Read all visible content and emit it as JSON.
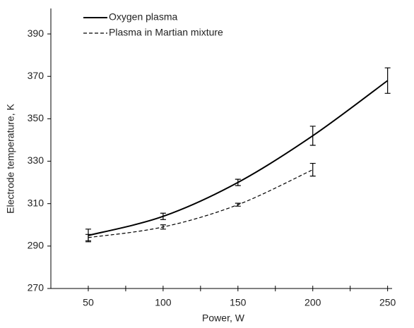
{
  "chart_data": {
    "type": "line",
    "x_label": "Power, W",
    "y_label": "Electrode temperature, K",
    "x": [
      50,
      100,
      150,
      200,
      250
    ],
    "series": [
      {
        "name": "Oxygen plasma",
        "color": "#000000",
        "dash": "solid",
        "values": [
          295,
          304,
          320,
          342,
          368
        ],
        "errors": [
          3,
          1.5,
          1.5,
          4.5,
          6
        ]
      },
      {
        "name": "Plasma in Martian mixture",
        "color": "#000000",
        "dash": "dashed",
        "values": [
          294,
          299,
          309.5,
          326,
          null
        ],
        "errors": [
          1.5,
          1,
          0.7,
          3,
          null
        ]
      }
    ],
    "xlim": [
      25,
      253
    ],
    "ylim": [
      270,
      402
    ],
    "xticks": [
      50,
      100,
      150,
      200,
      250
    ],
    "xminorticks": [
      75,
      125,
      175,
      225
    ],
    "yticks": [
      270,
      290,
      310,
      330,
      350,
      370,
      390
    ],
    "legend": "upper left",
    "grid": false
  }
}
